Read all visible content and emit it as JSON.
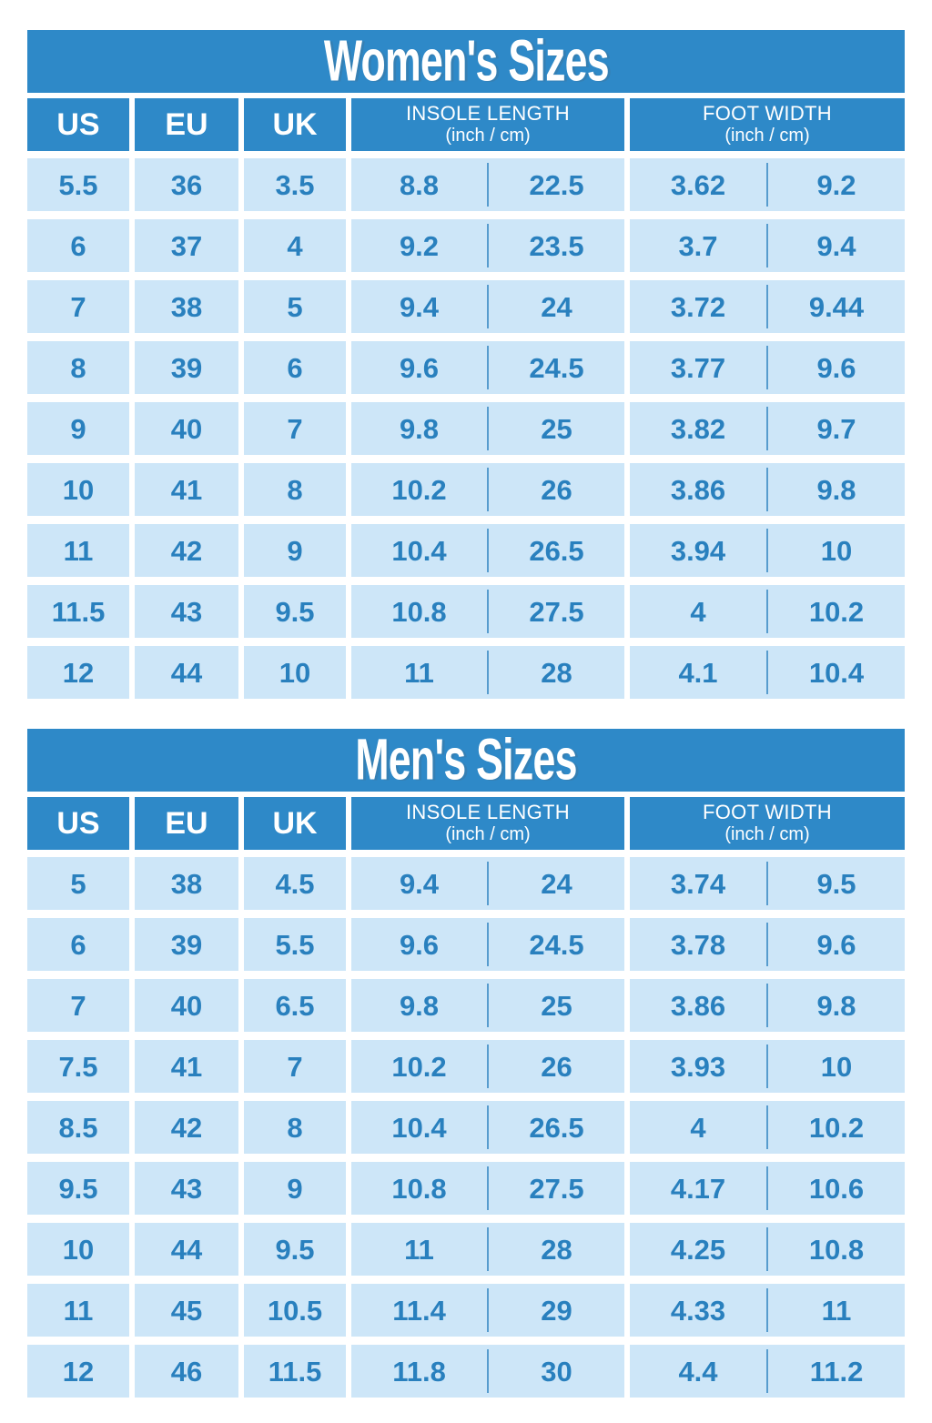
{
  "colors": {
    "header_blue": "#2E89C8",
    "cell_light_blue": "#CDE6F8",
    "value_text_blue": "#2980BE",
    "title_text": "#FFFFFF",
    "page_background": "#FFFFFF"
  },
  "chart_data": [
    {
      "type": "table",
      "title": "Women's Sizes",
      "columns": [
        {
          "label": "US"
        },
        {
          "label": "EU"
        },
        {
          "label": "UK"
        },
        {
          "label": "INSOLE LENGTH",
          "sub": "(inch / cm)"
        },
        {
          "label": "FOOT WIDTH",
          "sub": "(inch / cm)"
        }
      ],
      "rows": [
        {
          "us": "5.5",
          "eu": "36",
          "uk": "3.5",
          "insole_in": "8.8",
          "insole_cm": "22.5",
          "width_in": "3.62",
          "width_cm": "9.2"
        },
        {
          "us": "6",
          "eu": "37",
          "uk": "4",
          "insole_in": "9.2",
          "insole_cm": "23.5",
          "width_in": "3.7",
          "width_cm": "9.4"
        },
        {
          "us": "7",
          "eu": "38",
          "uk": "5",
          "insole_in": "9.4",
          "insole_cm": "24",
          "width_in": "3.72",
          "width_cm": "9.44"
        },
        {
          "us": "8",
          "eu": "39",
          "uk": "6",
          "insole_in": "9.6",
          "insole_cm": "24.5",
          "width_in": "3.77",
          "width_cm": "9.6"
        },
        {
          "us": "9",
          "eu": "40",
          "uk": "7",
          "insole_in": "9.8",
          "insole_cm": "25",
          "width_in": "3.82",
          "width_cm": "9.7"
        },
        {
          "us": "10",
          "eu": "41",
          "uk": "8",
          "insole_in": "10.2",
          "insole_cm": "26",
          "width_in": "3.86",
          "width_cm": "9.8"
        },
        {
          "us": "11",
          "eu": "42",
          "uk": "9",
          "insole_in": "10.4",
          "insole_cm": "26.5",
          "width_in": "3.94",
          "width_cm": "10"
        },
        {
          "us": "11.5",
          "eu": "43",
          "uk": "9.5",
          "insole_in": "10.8",
          "insole_cm": "27.5",
          "width_in": "4",
          "width_cm": "10.2"
        },
        {
          "us": "12",
          "eu": "44",
          "uk": "10",
          "insole_in": "11",
          "insole_cm": "28",
          "width_in": "4.1",
          "width_cm": "10.4"
        }
      ]
    },
    {
      "type": "table",
      "title": "Men's Sizes",
      "columns": [
        {
          "label": "US"
        },
        {
          "label": "EU"
        },
        {
          "label": "UK"
        },
        {
          "label": "INSOLE LENGTH",
          "sub": "(inch / cm)"
        },
        {
          "label": "FOOT WIDTH",
          "sub": "(inch / cm)"
        }
      ],
      "rows": [
        {
          "us": "5",
          "eu": "38",
          "uk": "4.5",
          "insole_in": "9.4",
          "insole_cm": "24",
          "width_in": "3.74",
          "width_cm": "9.5"
        },
        {
          "us": "6",
          "eu": "39",
          "uk": "5.5",
          "insole_in": "9.6",
          "insole_cm": "24.5",
          "width_in": "3.78",
          "width_cm": "9.6"
        },
        {
          "us": "7",
          "eu": "40",
          "uk": "6.5",
          "insole_in": "9.8",
          "insole_cm": "25",
          "width_in": "3.86",
          "width_cm": "9.8"
        },
        {
          "us": "7.5",
          "eu": "41",
          "uk": "7",
          "insole_in": "10.2",
          "insole_cm": "26",
          "width_in": "3.93",
          "width_cm": "10"
        },
        {
          "us": "8.5",
          "eu": "42",
          "uk": "8",
          "insole_in": "10.4",
          "insole_cm": "26.5",
          "width_in": "4",
          "width_cm": "10.2"
        },
        {
          "us": "9.5",
          "eu": "43",
          "uk": "9",
          "insole_in": "10.8",
          "insole_cm": "27.5",
          "width_in": "4.17",
          "width_cm": "10.6"
        },
        {
          "us": "10",
          "eu": "44",
          "uk": "9.5",
          "insole_in": "11",
          "insole_cm": "28",
          "width_in": "4.25",
          "width_cm": "10.8"
        },
        {
          "us": "11",
          "eu": "45",
          "uk": "10.5",
          "insole_in": "11.4",
          "insole_cm": "29",
          "width_in": "4.33",
          "width_cm": "11"
        },
        {
          "us": "12",
          "eu": "46",
          "uk": "11.5",
          "insole_in": "11.8",
          "insole_cm": "30",
          "width_in": "4.4",
          "width_cm": "11.2"
        }
      ]
    }
  ]
}
